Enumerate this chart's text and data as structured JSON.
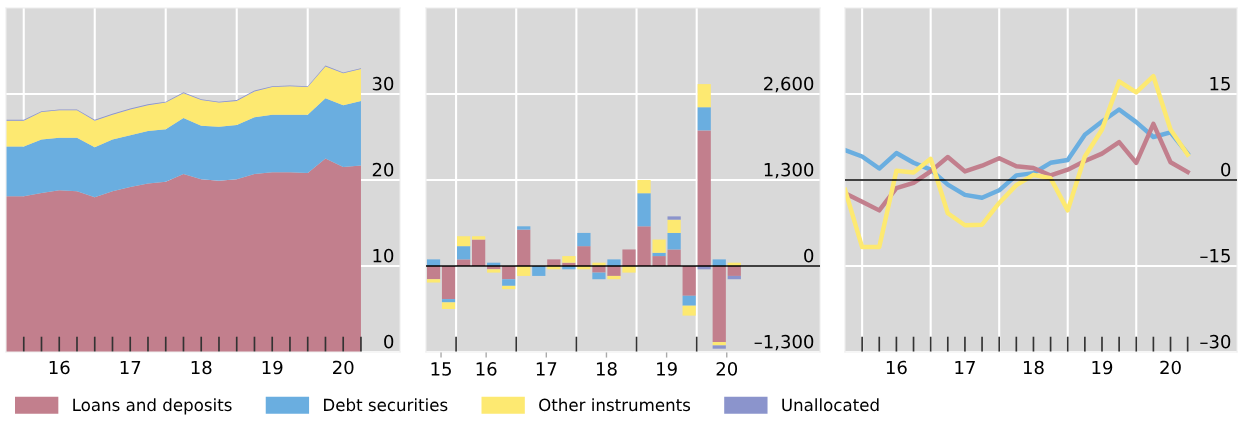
{
  "chart_data": [
    {
      "type": "area",
      "stacked": true,
      "legend": "bottom",
      "grid": true,
      "x": [
        15.25,
        15.5,
        15.75,
        16.0,
        16.25,
        16.5,
        16.75,
        17.0,
        17.25,
        17.5,
        17.75,
        18.0,
        18.25,
        18.5,
        18.75,
        19.0,
        19.25,
        19.5,
        19.75,
        20.0,
        20.25
      ],
      "xlim": [
        15.25,
        20.8
      ],
      "ylim": [
        0,
        40
      ],
      "yticks": [
        0,
        10,
        20,
        30
      ],
      "xticks": [
        {
          "value": 15.5,
          "label": null
        },
        {
          "value": 15.75,
          "label": null
        },
        {
          "value": 16.25,
          "label": null
        },
        {
          "value": 16.5,
          "label": null
        },
        {
          "value": 16.75,
          "label": null
        },
        {
          "value": 17.25,
          "label": null
        },
        {
          "value": 17.5,
          "label": null
        },
        {
          "value": 17.75,
          "label": null
        },
        {
          "value": 18.25,
          "label": null
        },
        {
          "value": 18.5,
          "label": null
        },
        {
          "value": 18.75,
          "label": null
        },
        {
          "value": 19.25,
          "label": null
        },
        {
          "value": 19.5,
          "label": null
        },
        {
          "value": 19.75,
          "label": null
        },
        {
          "value": 20.25,
          "label": null
        },
        16,
        17,
        18,
        19,
        20
      ],
      "series": [
        {
          "name": "Loans and deposits",
          "color": "#c27f8d",
          "values": [
            18.1,
            18.1,
            18.5,
            18.8,
            18.7,
            18.0,
            18.7,
            19.2,
            19.6,
            19.8,
            20.7,
            20.1,
            19.9,
            20.1,
            20.7,
            20.9,
            20.9,
            20.8,
            22.5,
            21.5,
            21.7
          ]
        },
        {
          "name": "Debt securities",
          "color": "#6aaee0",
          "values": [
            5.8,
            5.8,
            6.2,
            6.1,
            6.2,
            5.8,
            6.0,
            6.0,
            6.1,
            6.1,
            6.5,
            6.2,
            6.3,
            6.3,
            6.6,
            6.7,
            6.7,
            6.8,
            7.0,
            7.2,
            7.5
          ]
        },
        {
          "name": "Other instruments",
          "color": "#fde971",
          "values": [
            3.0,
            3.0,
            3.2,
            3.2,
            3.2,
            3.1,
            2.9,
            3.0,
            3.0,
            3.1,
            2.9,
            3.0,
            2.8,
            2.8,
            3.0,
            3.2,
            3.3,
            3.2,
            3.7,
            3.7,
            3.7
          ]
        },
        {
          "name": "Unallocated",
          "color": "#8b94cc",
          "values": [
            0.1,
            0.1,
            0.1,
            0.1,
            0.1,
            0.1,
            0.1,
            0.1,
            0.1,
            0.1,
            0.1,
            0.1,
            0.1,
            0.1,
            0.1,
            0.1,
            0.1,
            0.1,
            0.1,
            0.1,
            0.1
          ]
        }
      ]
    },
    {
      "type": "bar",
      "stacked": true,
      "grid": true,
      "x": [
        15.125,
        15.375,
        15.625,
        15.875,
        16.125,
        16.375,
        16.625,
        16.875,
        17.125,
        17.375,
        17.625,
        17.875,
        18.125,
        18.375,
        18.625,
        18.875,
        19.125,
        19.375,
        19.625,
        19.875,
        20.125
      ],
      "xlim": [
        15.0,
        21.55
      ],
      "ylim": [
        -1300,
        3900
      ],
      "yticks": [
        {
          "value": -1300,
          "label": "–1,300"
        },
        {
          "value": 0,
          "label": "0"
        },
        {
          "value": 1300,
          "label": "1,300"
        },
        {
          "value": 2600,
          "label": "2,600"
        }
      ],
      "xticks": [
        {
          "value": 15.5,
          "label": null
        },
        {
          "value": 16.5,
          "label": null
        },
        {
          "value": 17.5,
          "label": null
        },
        {
          "value": 18.5,
          "label": null
        },
        {
          "value": 19.5,
          "label": null
        },
        {
          "value": 15.25,
          "label": "15"
        },
        16,
        17,
        18,
        19,
        20
      ],
      "ref_lines": [
        {
          "axis": "y",
          "value": 0,
          "color": "#000000"
        }
      ],
      "series": [
        {
          "color": "#c27f8d",
          "values": [
            -200,
            -500,
            100,
            400,
            -50,
            -200,
            550,
            0,
            100,
            50,
            300,
            -100,
            -150,
            250,
            600,
            150,
            250,
            -450,
            2050,
            -1150,
            -150
          ]
        },
        {
          "color": "#6aaee0",
          "values": [
            100,
            -50,
            200,
            0,
            50,
            -100,
            50,
            -150,
            0,
            -50,
            200,
            -100,
            100,
            0,
            500,
            50,
            250,
            -150,
            350,
            100,
            0
          ]
        },
        {
          "color": "#fde971",
          "values": [
            -50,
            -100,
            150,
            50,
            -50,
            -50,
            -150,
            0,
            -50,
            100,
            -50,
            50,
            -50,
            -100,
            200,
            200,
            200,
            -150,
            350,
            -50,
            50
          ]
        },
        {
          "color": "#8b94cc",
          "values": [
            0,
            0,
            0,
            0,
            0,
            0,
            0,
            0,
            0,
            0,
            0,
            0,
            0,
            0,
            0,
            0,
            50,
            0,
            -50,
            -50,
            -50
          ]
        }
      ]
    },
    {
      "type": "line",
      "grid": true,
      "x": [
        15.25,
        15.5,
        15.75,
        16.0,
        16.25,
        16.5,
        16.75,
        17.0,
        17.25,
        17.5,
        17.75,
        18.0,
        18.25,
        18.5,
        18.75,
        19.0,
        19.25,
        19.5,
        19.75,
        20.0,
        20.25
      ],
      "xlim": [
        15.25,
        20.97
      ],
      "ylim": [
        -30,
        30
      ],
      "yticks": [
        {
          "value": -30,
          "label": "–30"
        },
        {
          "value": -15,
          "label": "–15"
        },
        {
          "value": 0,
          "label": "0"
        },
        {
          "value": 15,
          "label": "15"
        }
      ],
      "xticks": [
        {
          "value": 15.5,
          "label": null
        },
        {
          "value": 15.75,
          "label": null
        },
        {
          "value": 16.25,
          "label": null
        },
        {
          "value": 16.5,
          "label": null
        },
        {
          "value": 16.75,
          "label": null
        },
        {
          "value": 17.25,
          "label": null
        },
        {
          "value": 17.5,
          "label": null
        },
        {
          "value": 17.75,
          "label": null
        },
        {
          "value": 18.25,
          "label": null
        },
        {
          "value": 18.5,
          "label": null
        },
        {
          "value": 18.75,
          "label": null
        },
        {
          "value": 19.25,
          "label": null
        },
        {
          "value": 19.5,
          "label": null
        },
        {
          "value": 19.75,
          "label": null
        },
        {
          "value": 20.25,
          "label": null
        },
        16,
        17,
        18,
        19,
        20
      ],
      "ref_lines": [
        {
          "axis": "y",
          "value": 0,
          "color": "#000000"
        }
      ],
      "series": [
        {
          "color": "#6aaee0",
          "values": [
            5.2,
            4.1,
            2.0,
            4.7,
            3.0,
            1.8,
            -0.8,
            -2.6,
            -3.1,
            -1.8,
            0.8,
            1.2,
            3.0,
            3.5,
            7.9,
            10.2,
            12.3,
            10.1,
            7.5,
            8.3,
            4.6
          ]
        },
        {
          "color": "#c27f8d",
          "values": [
            -2.3,
            -3.8,
            -5.3,
            -1.4,
            -0.5,
            1.5,
            4.0,
            1.5,
            2.5,
            3.8,
            2.4,
            2.1,
            0.8,
            1.8,
            3.3,
            4.6,
            6.6,
            3.0,
            9.8,
            3.1,
            1.4
          ]
        },
        {
          "color": "#fde971",
          "values": [
            -1.7,
            -11.7,
            -11.7,
            1.6,
            1.3,
            3.7,
            -5.8,
            -7.9,
            -7.8,
            -4.0,
            -0.9,
            0.9,
            0.3,
            -5.3,
            4.1,
            8.8,
            17.2,
            15.3,
            18.1,
            8.8,
            4.4
          ]
        }
      ]
    }
  ]
}
